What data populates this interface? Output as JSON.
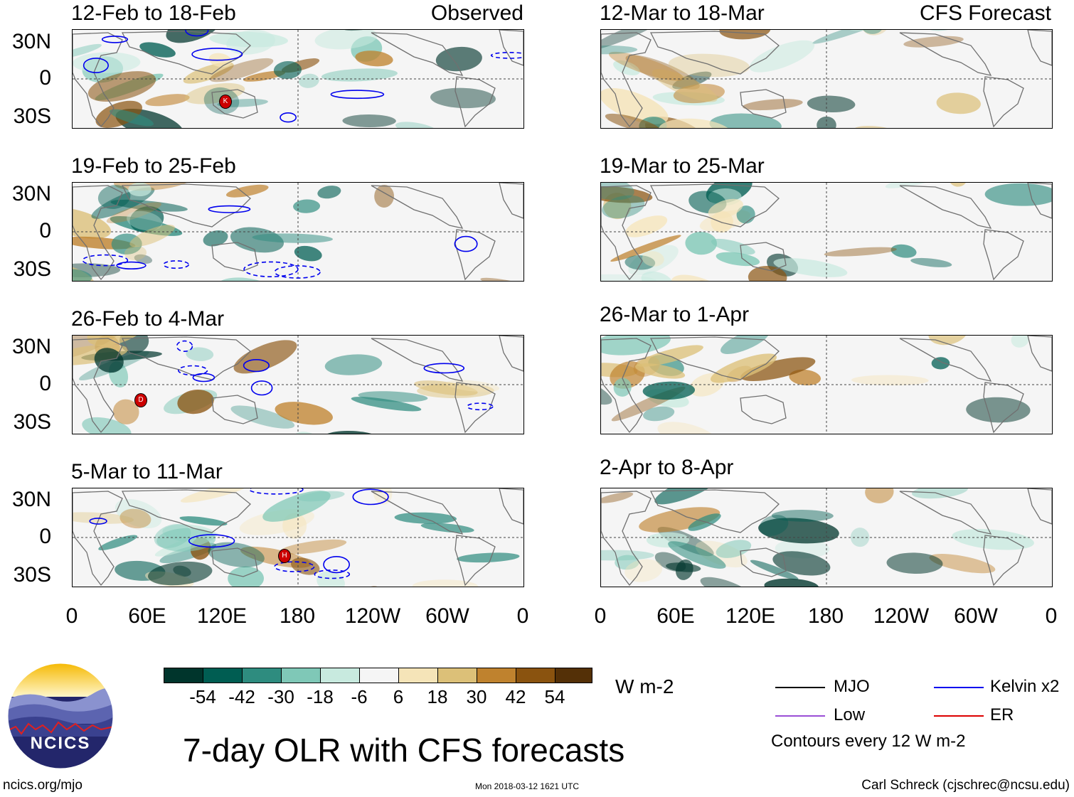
{
  "observed": {
    "heading": "Observed",
    "panels": [
      {
        "dates": "12-Feb to 18-Feb",
        "storms": [
          "K"
        ]
      },
      {
        "dates": "19-Feb to 25-Feb",
        "storms": []
      },
      {
        "dates": "26-Feb to 4-Mar",
        "storms": [
          "D"
        ]
      },
      {
        "dates": "5-Mar to 11-Mar",
        "storms": [
          "H"
        ]
      }
    ]
  },
  "forecast": {
    "heading": "CFS Forecast",
    "panels": [
      {
        "dates": "12-Mar to 18-Mar"
      },
      {
        "dates": "19-Mar to 25-Mar"
      },
      {
        "dates": "26-Mar to 1-Apr"
      },
      {
        "dates": "2-Apr to 8-Apr"
      }
    ]
  },
  "axes": {
    "y_ticks": [
      "30N",
      "0",
      "30S"
    ],
    "x_ticks": [
      "0",
      "60E",
      "120E",
      "180",
      "120W",
      "60W",
      "0"
    ]
  },
  "colorbar": {
    "unit": "W m-2",
    "tick_labels": [
      "-54",
      "-42",
      "-30",
      "-18",
      "-6",
      "6",
      "18",
      "30",
      "42",
      "54"
    ],
    "colors": [
      "#00352c",
      "#005d52",
      "#2e8c7f",
      "#7fc8b7",
      "#c8eadf",
      "#f5f5f5",
      "#f5e4b8",
      "#dcc078",
      "#bf822e",
      "#8a530f",
      "#543007"
    ]
  },
  "legend": {
    "items": [
      {
        "label": "MJO",
        "color": "#000000"
      },
      {
        "label": "Kelvin x2",
        "color": "#0000ee"
      },
      {
        "label": "Low",
        "color": "#9a4fd6"
      },
      {
        "label": "ER",
        "color": "#dd0000"
      }
    ],
    "note": "Contours every 12 W m-2"
  },
  "logo": {
    "text": "NCICS"
  },
  "footer": {
    "title": "7-day OLR with CFS forecasts",
    "url": "ncics.org/mjo",
    "timestamp": "Mon 2018-03-12 1621 UTC",
    "author": "Carl Schreck (cjschrec@ncsu.edu)"
  }
}
